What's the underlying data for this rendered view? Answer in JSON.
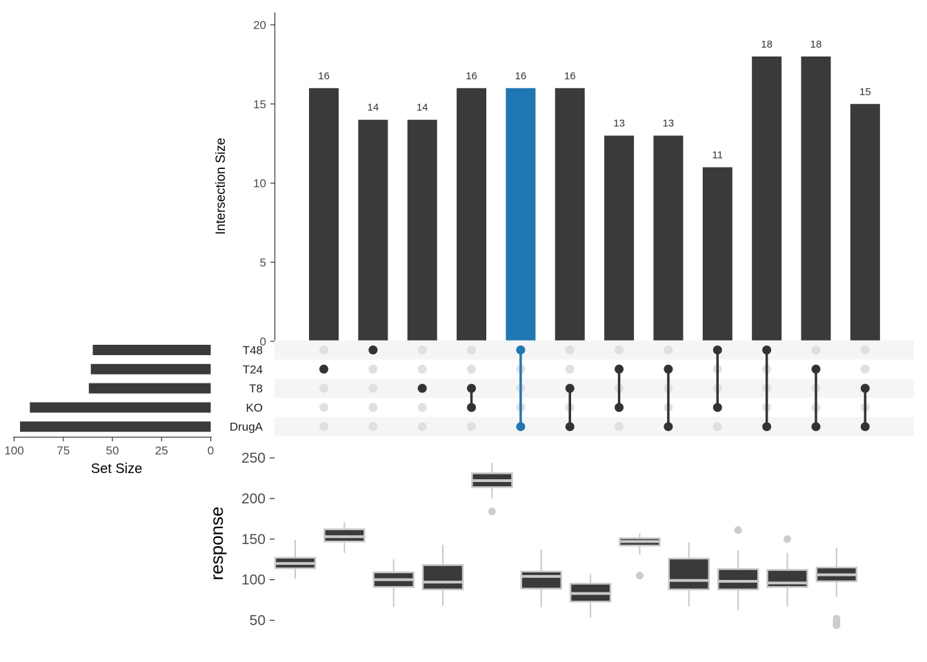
{
  "chart_data": [
    {
      "type": "bar",
      "panel": "intersections",
      "ylabel": "Intersection Size",
      "ylim": [
        0,
        20.5
      ],
      "yticks": [
        0,
        5,
        10,
        15,
        20
      ],
      "values": [
        16,
        14,
        14,
        16,
        16,
        16,
        13,
        13,
        11,
        18,
        18,
        15
      ],
      "value_labels": [
        "16",
        "14",
        "14",
        "16",
        "16",
        "16",
        "13",
        "13",
        "11",
        "18",
        "18",
        "15"
      ],
      "highlighted_index": 4,
      "colors": {
        "bar": "#3a3a3a",
        "highlight": "#1f77b4"
      }
    },
    {
      "type": "table",
      "panel": "matrix",
      "sets": [
        "T48",
        "T24",
        "T8",
        "KO",
        "DrugA"
      ],
      "intersections": [
        [
          "T24"
        ],
        [
          "T48"
        ],
        [
          "T8"
        ],
        [
          "T8",
          "KO"
        ],
        [
          "T48",
          "DrugA"
        ],
        [
          "T8",
          "DrugA"
        ],
        [
          "T24",
          "KO"
        ],
        [
          "T24",
          "DrugA"
        ],
        [
          "T48",
          "KO"
        ],
        [
          "T48",
          "DrugA"
        ],
        [
          "T24",
          "DrugA"
        ],
        [
          "T8",
          "DrugA"
        ]
      ],
      "colors": {
        "active": "#333333",
        "inactive": "#e0e0e0",
        "highlight": "#1f77b4",
        "stripe": "#f5f5f5"
      }
    },
    {
      "type": "bar",
      "panel": "set-sizes",
      "orientation": "horizontal",
      "xlabel": "Set Size",
      "categories": [
        "T48",
        "T24",
        "T8",
        "KO",
        "DrugA"
      ],
      "values": [
        60,
        61,
        62,
        92,
        97
      ],
      "xlim": [
        0,
        101
      ],
      "xticks": [
        "100",
        "75",
        "50",
        "25",
        "0"
      ],
      "reversed": true
    },
    {
      "type": "box",
      "panel": "response",
      "ylabel": "response",
      "ylim": [
        36,
        258
      ],
      "yticks": [
        50,
        100,
        150,
        200,
        250
      ],
      "boxes": [
        {
          "min": 101,
          "q1": 114,
          "median": 120,
          "q3": 127,
          "max": 149,
          "outliers": []
        },
        {
          "min": 133,
          "q1": 147,
          "median": 153,
          "q3": 162,
          "max": 171,
          "outliers": []
        },
        {
          "min": 66,
          "q1": 91,
          "median": 100,
          "q3": 109,
          "max": 125,
          "outliers": []
        },
        {
          "min": 68,
          "q1": 88,
          "median": 97,
          "q3": 118,
          "max": 143,
          "outliers": []
        },
        {
          "min": 200,
          "q1": 214,
          "median": 222,
          "q3": 231,
          "max": 244,
          "outliers": [
            184
          ]
        },
        {
          "min": 66,
          "q1": 89,
          "median": 104,
          "q3": 110,
          "max": 137,
          "outliers": []
        },
        {
          "min": 53,
          "q1": 73,
          "median": 83,
          "q3": 95,
          "max": 107,
          "outliers": []
        },
        {
          "min": 131,
          "q1": 142,
          "median": 147,
          "q3": 151,
          "max": 157,
          "outliers": [
            105
          ]
        },
        {
          "min": 67,
          "q1": 88,
          "median": 99,
          "q3": 126,
          "max": 146,
          "outliers": []
        },
        {
          "min": 62,
          "q1": 88,
          "median": 98,
          "q3": 113,
          "max": 136,
          "outliers": [
            161
          ]
        },
        {
          "min": 67,
          "q1": 91,
          "median": 96,
          "q3": 112,
          "max": 133,
          "outliers": [
            150
          ]
        },
        {
          "min": 79,
          "q1": 98,
          "median": 106,
          "q3": 115,
          "max": 139,
          "outliers": [
            52,
            48,
            44
          ]
        }
      ],
      "colors": {
        "box": "#3a3a3a",
        "stroke": "#c8c8c8",
        "outlier": "#cccccc"
      }
    }
  ]
}
